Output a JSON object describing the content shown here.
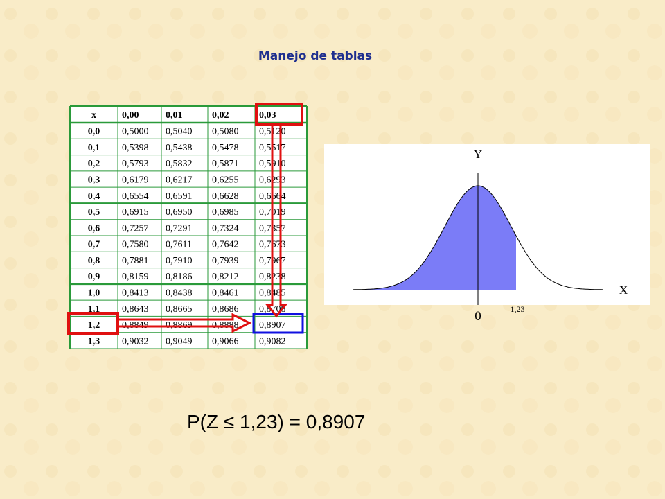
{
  "title": "Manejo de tablas",
  "table": {
    "header": [
      "x",
      "0,00",
      "0,01",
      "0,02",
      "0,03"
    ],
    "rows": [
      [
        "0,0",
        "0,5000",
        "0,5040",
        "0,5080",
        "0,5120"
      ],
      [
        "0,1",
        "0,5398",
        "0,5438",
        "0,5478",
        "0,5517"
      ],
      [
        "0,2",
        "0,5793",
        "0,5832",
        "0,5871",
        "0,5910"
      ],
      [
        "0,3",
        "0,6179",
        "0,6217",
        "0,6255",
        "0,6293"
      ],
      [
        "0,4",
        "0,6554",
        "0,6591",
        "0,6628",
        "0,6664"
      ],
      [
        "0,5",
        "0,6915",
        "0,6950",
        "0,6985",
        "0,7019"
      ],
      [
        "0,6",
        "0,7257",
        "0,7291",
        "0,7324",
        "0,7357"
      ],
      [
        "0,7",
        "0,7580",
        "0,7611",
        "0,7642",
        "0,7673"
      ],
      [
        "0,8",
        "0,7881",
        "0,7910",
        "0,7939",
        "0,7967"
      ],
      [
        "0,9",
        "0,8159",
        "0,8186",
        "0,8212",
        "0,8238"
      ],
      [
        "1,0",
        "0,8413",
        "0,8438",
        "0,8461",
        "0,8485"
      ],
      [
        "1,1",
        "0,8643",
        "0,8665",
        "0,8686",
        "0,8708"
      ],
      [
        "1,2",
        "0,8849",
        "0,8869",
        "0,8888",
        "0,8907"
      ],
      [
        "1,3",
        "0,9032",
        "0,9049",
        "0,9066",
        "0,9082"
      ]
    ]
  },
  "graph": {
    "y_label": "Y",
    "x_label": "X",
    "origin_label": "0",
    "z_label": "1,23"
  },
  "formula": "P(Z ≤ 1,23) = 0,8907"
}
